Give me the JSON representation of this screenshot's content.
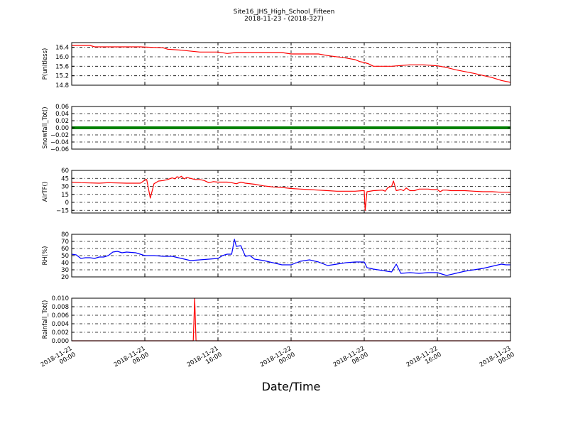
{
  "page": {
    "title_line1": "Site16_JHS_High_School_Fifteen",
    "title_line2": "2018-11-23 - (2018-327)",
    "xlabel": "Date/Time"
  },
  "chart_data": {
    "type": "line",
    "title": "Site16_JHS_High_School_Fifteen",
    "subtitle": "2018-11-23 - (2018-327)",
    "xlabel": "Date/Time",
    "x_range_hours": [
      0,
      48
    ],
    "x_ticks": [
      {
        "hour": 0,
        "line1": "2018-11-21",
        "line2": "00:00"
      },
      {
        "hour": 8,
        "line1": "2018-11-21",
        "line2": "08:00"
      },
      {
        "hour": 16,
        "line1": "2018-11-21",
        "line2": "16:00"
      },
      {
        "hour": 24,
        "line1": "2018-11-22",
        "line2": "00:00"
      },
      {
        "hour": 32,
        "line1": "2018-11-22",
        "line2": "08:00"
      },
      {
        "hour": 40,
        "line1": "2018-11-22",
        "line2": "16:00"
      },
      {
        "hour": 48,
        "line1": "2018-11-23",
        "line2": "00:00"
      }
    ],
    "grid": true,
    "panels": [
      {
        "name": "P",
        "ylabel": "P(unitless)",
        "color": "#ff0000",
        "ylim": [
          14.8,
          16.6
        ],
        "yticks": [
          14.8,
          15.2,
          15.6,
          16.0,
          16.4
        ],
        "ytick_labels": [
          "14.8",
          "15.2",
          "15.6",
          "16.0",
          "16.4"
        ],
        "x": [
          0,
          2,
          2.5,
          7.5,
          10,
          10.5,
          12,
          14,
          16,
          17,
          18,
          19,
          23,
          24,
          27,
          28,
          30,
          31,
          31.5,
          32,
          32.5,
          33,
          35,
          37,
          38.5,
          40,
          41,
          42,
          44,
          46,
          47,
          48
        ],
        "y": [
          16.48,
          16.48,
          16.42,
          16.42,
          16.38,
          16.32,
          16.28,
          16.2,
          16.2,
          16.14,
          16.18,
          16.18,
          16.18,
          16.12,
          16.12,
          16.05,
          15.95,
          15.88,
          15.8,
          15.76,
          15.7,
          15.6,
          15.6,
          15.66,
          15.66,
          15.62,
          15.55,
          15.45,
          15.3,
          15.12,
          15.0,
          14.92
        ]
      },
      {
        "name": "Snowfall_Tot",
        "ylabel": "Snowfall_Tot()",
        "color": "#008000",
        "ylim": [
          -0.06,
          0.06
        ],
        "yticks": [
          -0.06,
          -0.04,
          -0.02,
          0.0,
          0.02,
          0.04,
          0.06
        ],
        "ytick_labels": [
          "−0.06",
          "−0.04",
          "−0.02",
          "0.00",
          "0.02",
          "0.04",
          "0.06"
        ],
        "x": [
          0,
          48
        ],
        "y": [
          0,
          0
        ]
      },
      {
        "name": "AirT",
        "ylabel": "AirTF()",
        "color": "#ff0000",
        "ylim": [
          -20,
          60
        ],
        "yticks": [
          -15,
          0,
          15,
          30,
          45,
          60
        ],
        "ytick_labels": [
          "−15",
          "0",
          "15",
          "30",
          "45",
          "60"
        ],
        "x": [
          0,
          1,
          3,
          4,
          6,
          7.5,
          7.7,
          8,
          8.2,
          8.6,
          9,
          9.5,
          10,
          10.5,
          11,
          11.3,
          11.5,
          11.8,
          12,
          12.3,
          12.6,
          13,
          13.5,
          14,
          14.5,
          15,
          15.5,
          16,
          17,
          17.5,
          18,
          18.5,
          19,
          20,
          21,
          22,
          23,
          24,
          25,
          26,
          27,
          28,
          29,
          30,
          31,
          31.8,
          32,
          32.1,
          32.3,
          33,
          34,
          34.3,
          34.6,
          35,
          35.2,
          35.5,
          36,
          36.3,
          36.6,
          37,
          37.5,
          38,
          39,
          39.5,
          40,
          40.3,
          40.6,
          41,
          41.5,
          42,
          43,
          44,
          45,
          46,
          47,
          48
        ],
        "y": [
          38,
          37,
          36,
          37,
          36,
          36,
          38,
          42,
          43,
          8,
          35,
          40,
          41,
          43,
          46,
          44,
          48,
          47,
          49,
          44,
          47,
          45,
          43,
          43,
          41,
          37,
          39,
          38,
          38,
          37,
          35,
          38,
          36,
          34,
          31,
          29,
          28,
          26,
          25,
          24,
          23,
          22,
          21,
          21,
          21,
          22,
          22,
          -15,
          20,
          22,
          23,
          21,
          28,
          30,
          40,
          22,
          24,
          22,
          27,
          22,
          22,
          25,
          25,
          24,
          24,
          20,
          23,
          23,
          22,
          22,
          22,
          21,
          20,
          20,
          19,
          19
        ]
      },
      {
        "name": "RH",
        "ylabel": "RH(%)",
        "color": "#0000ff",
        "ylim": [
          20,
          80
        ],
        "yticks": [
          20,
          30,
          40,
          50,
          60,
          70,
          80
        ],
        "ytick_labels": [
          "20",
          "30",
          "40",
          "50",
          "60",
          "70",
          "80"
        ],
        "x": [
          0,
          0.5,
          1,
          1.5,
          2,
          2.5,
          3,
          3.5,
          4,
          4.5,
          5,
          5.5,
          6,
          7,
          8,
          9,
          10,
          11,
          12,
          13,
          14,
          15,
          16,
          16.5,
          17,
          17.5,
          17.8,
          18,
          18.5,
          19,
          19.5,
          20,
          21,
          22,
          23,
          24,
          25,
          26,
          27,
          28,
          29,
          30,
          31,
          32,
          32.3,
          33,
          34,
          35,
          35.5,
          36,
          37,
          38,
          39,
          40,
          41,
          42,
          43,
          44,
          45,
          46,
          47,
          47.5,
          48
        ],
        "y": [
          52,
          51,
          46,
          47,
          47,
          46,
          48,
          48,
          50,
          55,
          56,
          54,
          55,
          54,
          50,
          50,
          49,
          49,
          46,
          43,
          44,
          45,
          46,
          50,
          52,
          52,
          73,
          63,
          64,
          49,
          50,
          45,
          43,
          40,
          37,
          37,
          42,
          44,
          41,
          36,
          38,
          40,
          41,
          41,
          33,
          31,
          29,
          27,
          38,
          25,
          26,
          25,
          26,
          26,
          22,
          25,
          28,
          30,
          32,
          35,
          38,
          37,
          37
        ]
      },
      {
        "name": "Rainfall_Tot",
        "ylabel": "Rainfall_Tot()",
        "color": "#ff0000",
        "ylim": [
          0,
          0.01
        ],
        "yticks": [
          0,
          0.002,
          0.004,
          0.006,
          0.008,
          0.01
        ],
        "ytick_labels": [
          "0.000",
          "0.002",
          "0.004",
          "0.006",
          "0.008",
          "0.010"
        ],
        "x": [
          0,
          13.3,
          13.45,
          13.6,
          48
        ],
        "y": [
          0,
          0,
          0.01,
          0,
          0
        ]
      }
    ]
  }
}
